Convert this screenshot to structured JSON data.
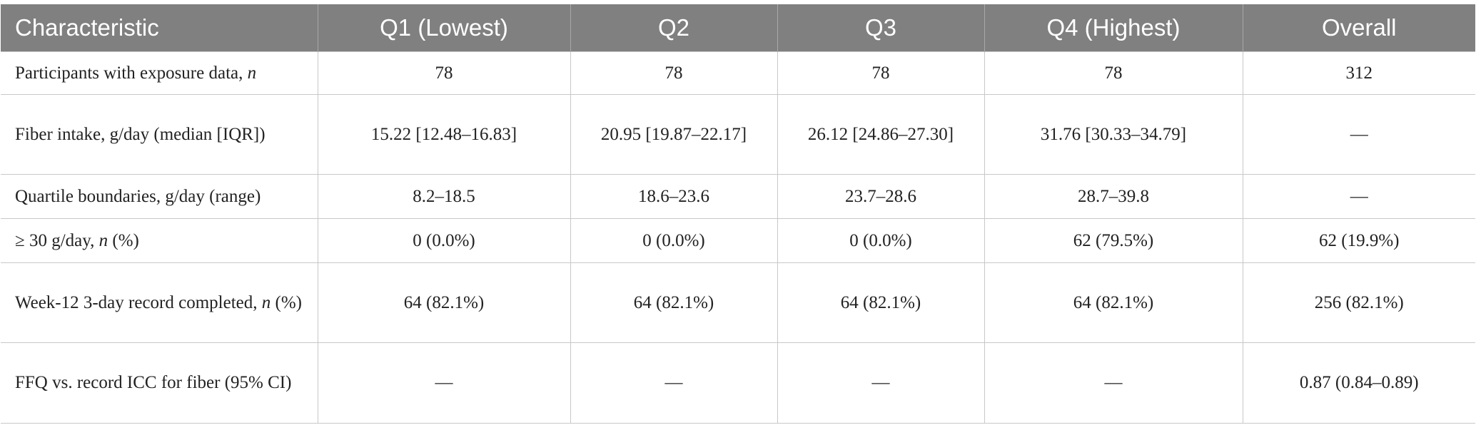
{
  "table": {
    "header": [
      "Characteristic",
      "Q1 (Lowest)",
      "Q2",
      "Q3",
      "Q4 (Highest)",
      "Overall"
    ],
    "rows": [
      {
        "label": [
          "Participants with exposure data, ",
          "n"
        ],
        "cells": [
          "78",
          "78",
          "78",
          "78",
          "312"
        ]
      },
      {
        "label": [
          "Fiber intake, g/day (median [IQR])"
        ],
        "cells": [
          "15.22 [12.48–16.83]",
          "20.95 [19.87–22.17]",
          "26.12 [24.86–27.30]",
          "31.76 [30.33–34.79]",
          "—"
        ]
      },
      {
        "label": [
          "Quartile boundaries, g/day (range)"
        ],
        "cells": [
          "8.2–18.5",
          "18.6–23.6",
          "23.7–28.6",
          "28.7–39.8",
          "—"
        ]
      },
      {
        "label": [
          "≥ 30 g/day, ",
          "n",
          " (%)"
        ],
        "cells": [
          "0 (0.0%)",
          "0 (0.0%)",
          "0 (0.0%)",
          "62 (79.5%)",
          "62 (19.9%)"
        ]
      },
      {
        "label": [
          "Week-12 3-day record completed, ",
          "n",
          " (%)"
        ],
        "cells": [
          "64 (82.1%)",
          "64 (82.1%)",
          "64 (82.1%)",
          "64 (82.1%)",
          "256 (82.1%)"
        ]
      },
      {
        "label": [
          "FFQ vs. record ICC for fiber (95% CI)"
        ],
        "cells": [
          "—",
          "—",
          "—",
          "—",
          "0.87 (0.84–0.89)"
        ]
      }
    ]
  }
}
